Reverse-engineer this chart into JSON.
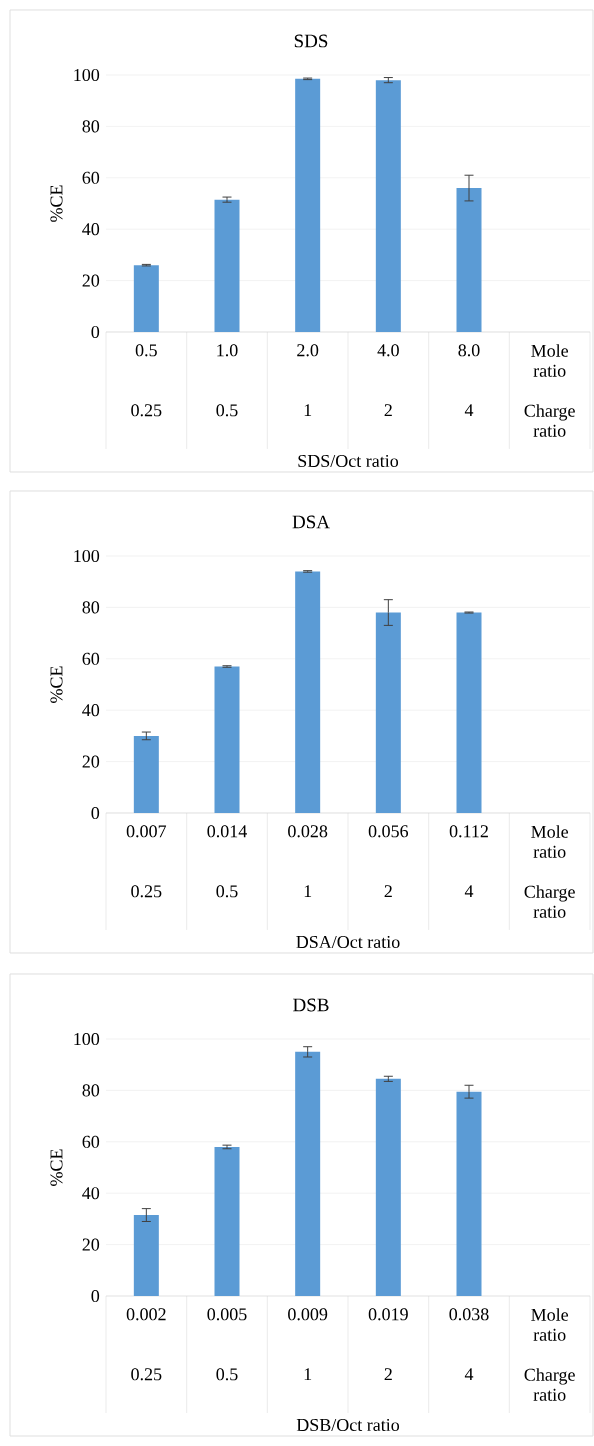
{
  "chart_data": [
    {
      "type": "bar",
      "title": "SDS",
      "xlabel": "SDS/Oct ratio",
      "ylabel": "%CE",
      "categories": [
        "0.5",
        "1.0",
        "2.0",
        "4.0",
        "8.0",
        "Mole ratio"
      ],
      "annotations": [
        "0.25",
        "0.5",
        "1",
        "2",
        "4",
        "Charge ratio"
      ],
      "values": [
        26,
        51.5,
        98.5,
        98,
        56,
        null
      ],
      "errors": [
        0.3,
        1,
        0.3,
        1,
        5,
        null
      ],
      "color": "#5b9bd5",
      "ylim": [
        0,
        100
      ],
      "yticks": [
        0,
        20,
        40,
        60,
        80,
        100
      ],
      "grid": "y"
    },
    {
      "type": "bar",
      "title": "DSA",
      "xlabel": "DSA/Oct ratio",
      "ylabel": "%CE",
      "categories": [
        "0.007",
        "0.014",
        "0.028",
        "0.056",
        "0.112",
        "Mole ratio"
      ],
      "annotations": [
        "0.25",
        "0.5",
        "1",
        "2",
        "4",
        "Charge ratio"
      ],
      "values": [
        30,
        57,
        94,
        78,
        78,
        null
      ],
      "errors": [
        1.5,
        0.3,
        0.3,
        5,
        0.2,
        null
      ],
      "color": "#5b9bd5",
      "ylim": [
        0,
        100
      ],
      "yticks": [
        0,
        20,
        40,
        60,
        80,
        100
      ],
      "grid": "y"
    },
    {
      "type": "bar",
      "title": "DSB",
      "xlabel": "DSB/Oct ratio",
      "ylabel": "%CE",
      "categories": [
        "0.002",
        "0.005",
        "0.009",
        "0.019",
        "0.038",
        "Mole ratio"
      ],
      "annotations": [
        "0.25",
        "0.5",
        "1",
        "2",
        "4",
        "Charge ratio"
      ],
      "values": [
        31.5,
        58,
        95,
        84.5,
        79.5,
        null
      ],
      "errors": [
        2.5,
        0.7,
        2,
        1,
        2.5,
        null
      ],
      "color": "#5b9bd5",
      "ylim": [
        0,
        100
      ],
      "yticks": [
        0,
        20,
        40,
        60,
        80,
        100
      ],
      "grid": "y"
    }
  ]
}
